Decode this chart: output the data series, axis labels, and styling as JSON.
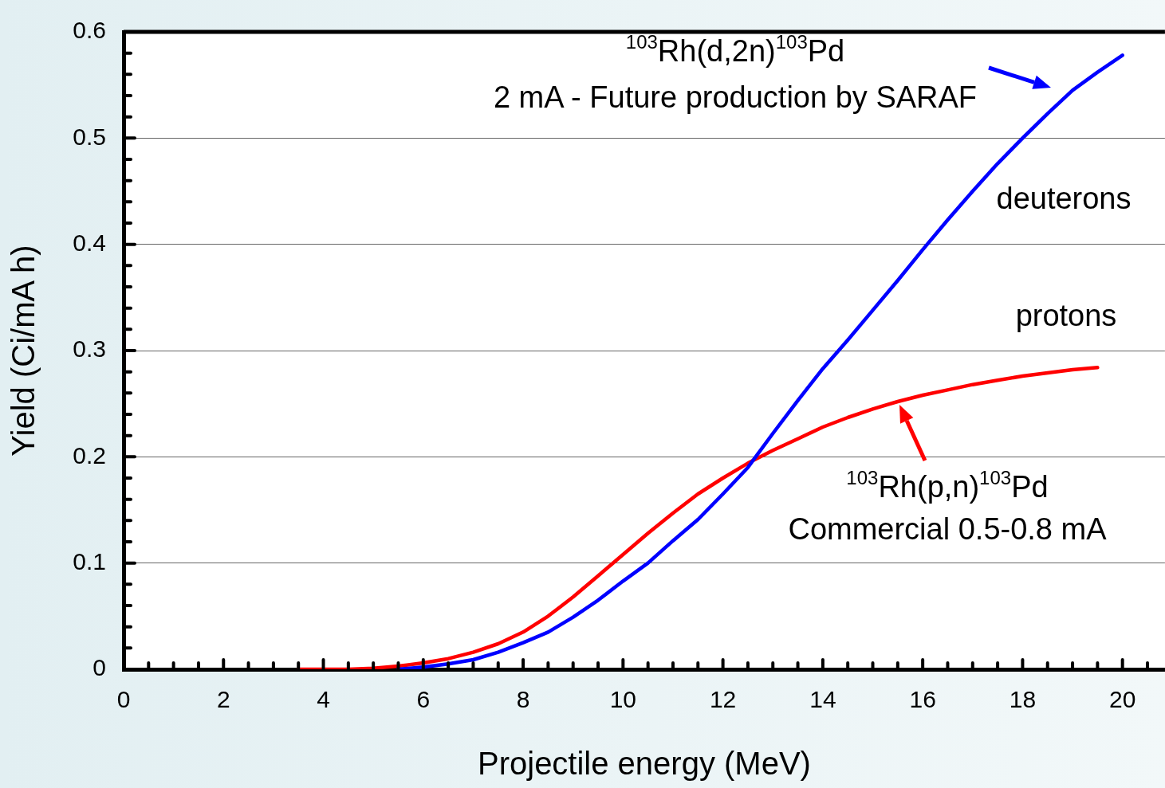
{
  "chart_data": {
    "type": "line",
    "xlabel": "Projectile energy (MeV)",
    "ylabel": "Yield (Ci/mA h)",
    "xlim": [
      0,
      20.85
    ],
    "ylim": [
      0,
      0.6
    ],
    "xticks": [
      0,
      {
        "value": 0.5,
        "label": null
      },
      {
        "value": 1,
        "label": null
      },
      {
        "value": 1.5,
        "label": null
      },
      2,
      {
        "value": 2.5,
        "label": null
      },
      {
        "value": 3,
        "label": null
      },
      {
        "value": 3.5,
        "label": null
      },
      4,
      {
        "value": 4.5,
        "label": null
      },
      {
        "value": 5,
        "label": null
      },
      {
        "value": 5.5,
        "label": null
      },
      6,
      {
        "value": 6.5,
        "label": null
      },
      {
        "value": 7,
        "label": null
      },
      {
        "value": 7.5,
        "label": null
      },
      8,
      {
        "value": 8.5,
        "label": null
      },
      {
        "value": 9,
        "label": null
      },
      {
        "value": 9.5,
        "label": null
      },
      10,
      {
        "value": 10.5,
        "label": null
      },
      {
        "value": 11,
        "label": null
      },
      {
        "value": 11.5,
        "label": null
      },
      12,
      {
        "value": 12.5,
        "label": null
      },
      {
        "value": 13,
        "label": null
      },
      {
        "value": 13.5,
        "label": null
      },
      14,
      {
        "value": 14.5,
        "label": null
      },
      {
        "value": 15,
        "label": null
      },
      {
        "value": 15.5,
        "label": null
      },
      16,
      {
        "value": 16.5,
        "label": null
      },
      {
        "value": 17,
        "label": null
      },
      {
        "value": 17.5,
        "label": null
      },
      18,
      {
        "value": 18.5,
        "label": null
      },
      {
        "value": 19,
        "label": null
      },
      {
        "value": 19.5,
        "label": null
      },
      20,
      {
        "value": 20.5,
        "label": null
      }
    ],
    "yticks": [
      0,
      {
        "value": 0.02,
        "label": null
      },
      {
        "value": 0.04,
        "label": null
      },
      {
        "value": 0.06,
        "label": null
      },
      {
        "value": 0.08,
        "label": null
      },
      0.1,
      {
        "value": 0.12,
        "label": null
      },
      {
        "value": 0.14,
        "label": null
      },
      {
        "value": 0.16,
        "label": null
      },
      {
        "value": 0.18,
        "label": null
      },
      0.2,
      {
        "value": 0.22,
        "label": null
      },
      {
        "value": 0.24,
        "label": null
      },
      {
        "value": 0.26,
        "label": null
      },
      {
        "value": 0.28,
        "label": null
      },
      0.3,
      {
        "value": 0.32,
        "label": null
      },
      {
        "value": 0.34,
        "label": null
      },
      {
        "value": 0.36,
        "label": null
      },
      {
        "value": 0.38,
        "label": null
      },
      0.4,
      {
        "value": 0.42,
        "label": null
      },
      {
        "value": 0.44,
        "label": null
      },
      {
        "value": 0.46,
        "label": null
      },
      {
        "value": 0.48,
        "label": null
      },
      0.5,
      {
        "value": 0.52,
        "label": null
      },
      {
        "value": 0.54,
        "label": null
      },
      {
        "value": 0.56,
        "label": null
      },
      {
        "value": 0.58,
        "label": null
      },
      0.6
    ],
    "grid": "y",
    "marker": "none",
    "line_style": "solid",
    "series": [
      {
        "color": "#0000ff",
        "x": [
          5.5,
          6,
          6.5,
          7,
          7.5,
          8,
          8.5,
          9,
          9.5,
          10,
          10.5,
          11,
          11.5,
          12,
          12.5,
          13,
          13.5,
          14,
          14.5,
          15,
          15.5,
          16,
          16.5,
          17,
          17.5,
          18,
          18.5,
          19,
          19.5,
          20
        ],
        "values": [
          0,
          0.002,
          0.005,
          0.009,
          0.016,
          0.025,
          0.035,
          0.049,
          0.065,
          0.083,
          0.1,
          0.121,
          0.141,
          0.165,
          0.19,
          0.222,
          0.253,
          0.283,
          0.31,
          0.338,
          0.366,
          0.395,
          0.423,
          0.45,
          0.476,
          0.5,
          0.523,
          0.545,
          0.562,
          0.578
        ]
      },
      {
        "color": "#ff0000",
        "x": [
          3.5,
          4,
          4.5,
          5,
          5.5,
          6,
          6.5,
          7,
          7.5,
          8,
          8.5,
          9,
          9.5,
          10,
          10.5,
          11,
          11.5,
          12,
          12.5,
          13,
          13.5,
          14,
          14.5,
          15,
          15.5,
          16,
          16.5,
          17,
          17.5,
          18,
          18.5,
          19,
          19.5
        ],
        "values": [
          0,
          0,
          0,
          0.001,
          0.003,
          0.006,
          0.01,
          0.016,
          0.024,
          0.035,
          0.05,
          0.068,
          0.088,
          0.108,
          0.128,
          0.147,
          0.165,
          0.18,
          0.194,
          0.206,
          0.217,
          0.228,
          0.237,
          0.245,
          0.252,
          0.258,
          0.263,
          0.268,
          0.272,
          0.276,
          0.279,
          0.282,
          0.284
        ]
      }
    ],
    "annotations": [
      "$^{103}$Rh(d,2n)$^{103}$Pd",
      "2 mA - Future production by SARAF",
      "deuterons",
      "protons",
      "$^{103}$Rh(p,n)$^{103}$Pd",
      "Commercial 0.5-0.8 mA"
    ]
  }
}
